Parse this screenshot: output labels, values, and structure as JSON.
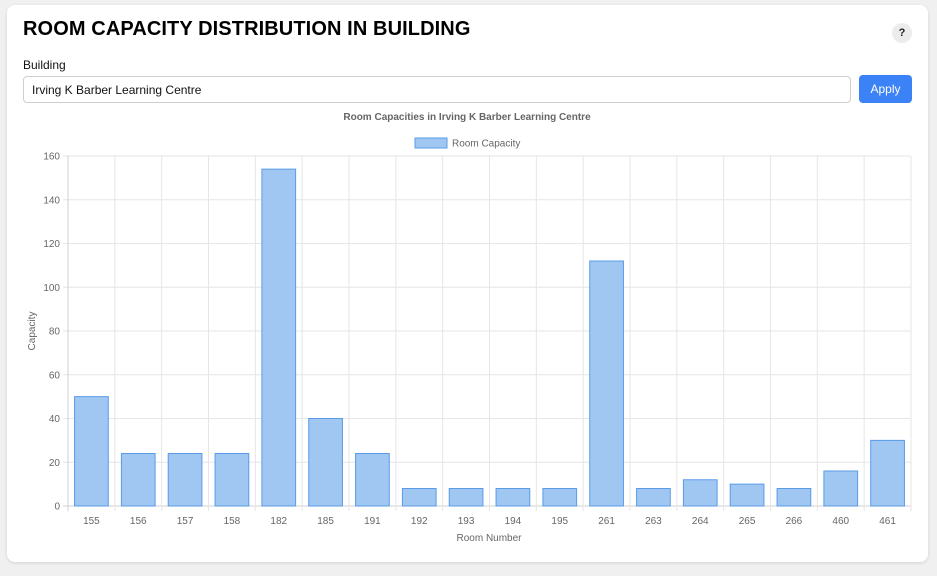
{
  "header": {
    "title": "ROOM CAPACITY DISTRIBUTION IN BUILDING",
    "help_label": "?"
  },
  "form": {
    "building_label": "Building",
    "building_value": "Irving K Barber Learning Centre",
    "apply_label": "Apply"
  },
  "chart_data": {
    "type": "bar",
    "title": "Room Capacities in Irving K Barber Learning Centre",
    "xlabel": "Room Number",
    "ylabel": "Capacity",
    "ylim": [
      0,
      160
    ],
    "yticks": [
      0,
      20,
      40,
      60,
      80,
      100,
      120,
      140,
      160
    ],
    "grid": true,
    "legend_position": "top",
    "categories": [
      "155",
      "156",
      "157",
      "158",
      "182",
      "185",
      "191",
      "192",
      "193",
      "194",
      "195",
      "261",
      "263",
      "264",
      "265",
      "266",
      "460",
      "461"
    ],
    "series": [
      {
        "name": "Room Capacity",
        "values": [
          50,
          24,
          24,
          24,
          154,
          40,
          24,
          8,
          8,
          8,
          8,
          112,
          8,
          12,
          10,
          8,
          16,
          30
        ],
        "fill_color": "#9fc7f1",
        "border_color": "#5a9be8"
      }
    ]
  }
}
